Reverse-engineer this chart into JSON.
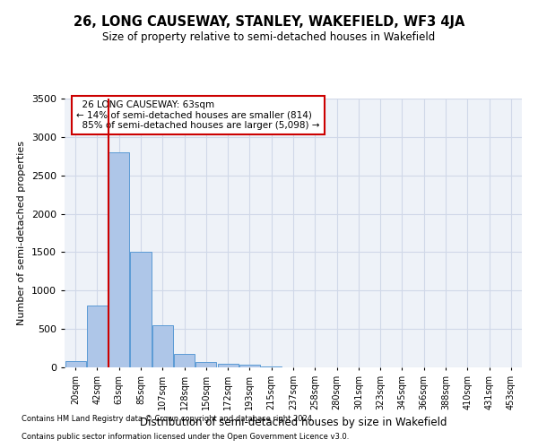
{
  "title": "26, LONG CAUSEWAY, STANLEY, WAKEFIELD, WF3 4JA",
  "subtitle": "Size of property relative to semi-detached houses in Wakefield",
  "xlabel": "Distribution of semi-detached houses by size in Wakefield",
  "ylabel": "Number of semi-detached properties",
  "footnote1": "Contains HM Land Registry data © Crown copyright and database right 2024.",
  "footnote2": "Contains public sector information licensed under the Open Government Licence v3.0.",
  "property_label": "26 LONG CAUSEWAY: 63sqm",
  "pct_smaller": 14,
  "pct_larger": 85,
  "n_smaller": 814,
  "n_larger": 5098,
  "bin_labels": [
    "20sqm",
    "42sqm",
    "63sqm",
    "85sqm",
    "107sqm",
    "128sqm",
    "150sqm",
    "172sqm",
    "193sqm",
    "215sqm",
    "237sqm",
    "258sqm",
    "280sqm",
    "301sqm",
    "323sqm",
    "345sqm",
    "366sqm",
    "388sqm",
    "410sqm",
    "431sqm",
    "453sqm"
  ],
  "bar_heights": [
    80,
    800,
    2800,
    1500,
    550,
    180,
    70,
    50,
    30,
    10,
    5,
    3,
    2,
    1,
    1,
    0,
    0,
    0,
    0,
    0,
    0
  ],
  "bar_color": "#aec6e8",
  "bar_edge_color": "#5b9bd5",
  "vline_color": "#cc0000",
  "vline_index": 2,
  "ylim": [
    0,
    3500
  ],
  "yticks": [
    0,
    500,
    1000,
    1500,
    2000,
    2500,
    3000,
    3500
  ],
  "annotation_box_color": "#cc0000",
  "grid_color": "#d0d8e8",
  "background_color": "#eef2f8"
}
